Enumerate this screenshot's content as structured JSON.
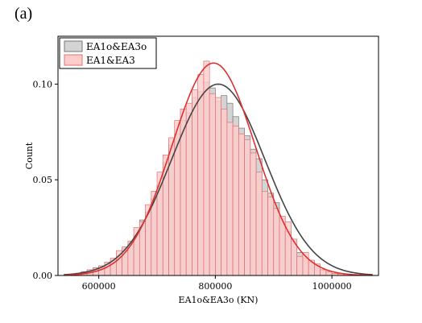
{
  "panel_label": "(a)",
  "chart_data": {
    "type": "histogram",
    "xlabel": "EA1o&EA3o (KN)",
    "ylabel": "Count",
    "xlim": [
      530000,
      1080000
    ],
    "ylim": [
      0,
      0.125
    ],
    "xticks": [
      600000,
      800000,
      1000000
    ],
    "xtick_labels": [
      "600000",
      "800000",
      "1000000"
    ],
    "yticks": [
      0,
      0.05,
      0.1
    ],
    "ytick_labels": [
      "0.00",
      "0.05",
      "0.10"
    ],
    "bin_start": 550000,
    "bin_width": 10000,
    "legend_position": "top-left",
    "series": [
      {
        "name": "EA1o&EA3o",
        "fill": "#d4d4d4",
        "edge": "#777777",
        "curve": "#444444",
        "mu": 805000,
        "sigma": 80000,
        "values": [
          0.0005,
          0.001,
          0.002,
          0.003,
          0.004,
          0.005,
          0.006,
          0.008,
          0.01,
          0.014,
          0.017,
          0.021,
          0.029,
          0.033,
          0.04,
          0.047,
          0.059,
          0.068,
          0.074,
          0.081,
          0.085,
          0.093,
          0.096,
          0.101,
          0.098,
          0.091,
          0.094,
          0.09,
          0.083,
          0.077,
          0.073,
          0.066,
          0.061,
          0.05,
          0.043,
          0.038,
          0.03,
          0.023,
          0.018,
          0.012,
          0.009,
          0.007,
          0.005,
          0.003,
          0.002,
          0.001,
          0.0008,
          0.0005,
          0.0003,
          0.0002,
          0.0001
        ]
      },
      {
        "name": "EA1&EA3",
        "fill": "#ffcccc",
        "edge": "#e07070",
        "curve": "#e03030",
        "mu": 797000,
        "sigma": 72000,
        "values": [
          0.0005,
          0.001,
          0.002,
          0.003,
          0.004,
          0.005,
          0.007,
          0.009,
          0.013,
          0.015,
          0.018,
          0.025,
          0.028,
          0.037,
          0.044,
          0.054,
          0.063,
          0.072,
          0.081,
          0.087,
          0.09,
          0.097,
          0.105,
          0.112,
          0.095,
          0.093,
          0.087,
          0.08,
          0.078,
          0.074,
          0.071,
          0.064,
          0.054,
          0.044,
          0.041,
          0.035,
          0.031,
          0.028,
          0.019,
          0.01,
          0.012,
          0.008,
          0.006,
          0.003,
          0.002,
          0.001,
          0.0008,
          0.0005,
          0.0003,
          0.0002,
          0.0001
        ]
      }
    ]
  }
}
